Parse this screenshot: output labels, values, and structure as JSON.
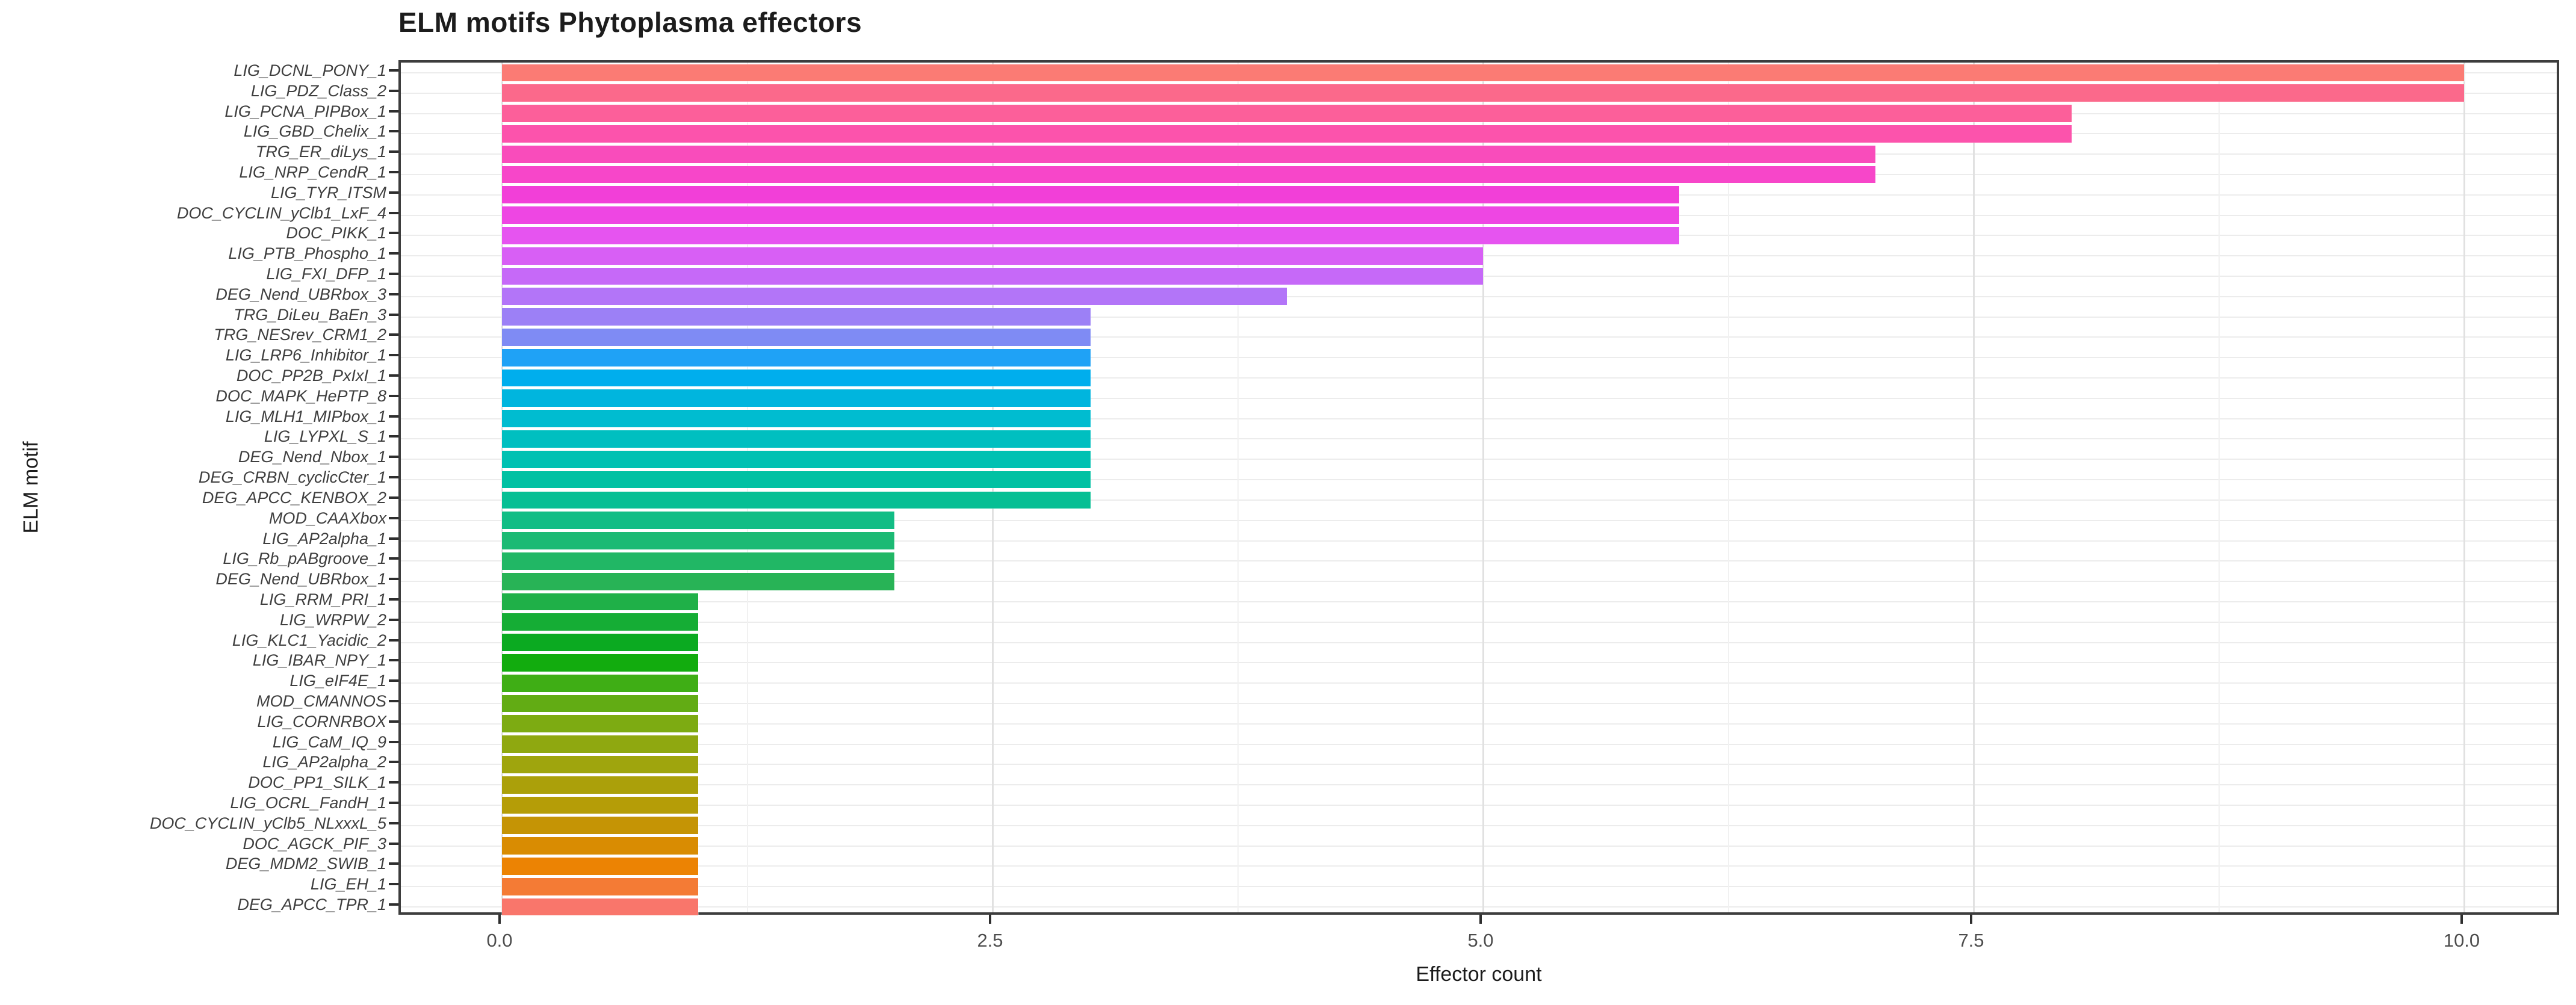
{
  "title": "ELM motifs Phytoplasma effectors",
  "x_axis_title": "Effector count",
  "y_axis_title": "ELM motif",
  "style": {
    "panel_border": "#3d3d3d",
    "grid_major": "#e1e1e1",
    "grid_minor": "#f1f1f1",
    "grid_row": "#ececec",
    "axis_tick_text": "#4d4d4d",
    "category_text": "#3f3f3f",
    "title_text": "#1c1c1c"
  },
  "chart_data": {
    "type": "bar",
    "orientation": "horizontal",
    "title": "ELM motifs Phytoplasma effectors",
    "xlabel": "Effector count",
    "ylabel": "ELM motif",
    "xlim": [
      0,
      10
    ],
    "grid": true,
    "legend": "none",
    "x_ticks": [
      {
        "label": "0.0",
        "value": 0
      },
      {
        "label": "2.5",
        "value": 2.5
      },
      {
        "label": "5.0",
        "value": 5
      },
      {
        "label": "7.5",
        "value": 7.5
      },
      {
        "label": "10.0",
        "value": 10
      }
    ],
    "x_minor_ticks": [
      1.25,
      3.75,
      6.25,
      8.75
    ],
    "categories": [
      "LIG_DCNL_PONY_1",
      "LIG_PDZ_Class_2",
      "LIG_PCNA_PIPBox_1",
      "LIG_GBD_Chelix_1",
      "TRG_ER_diLys_1",
      "LIG_NRP_CendR_1",
      "LIG_TYR_ITSM",
      "DOC_CYCLIN_yClb1_LxF_4",
      "DOC_PIKK_1",
      "LIG_PTB_Phospho_1",
      "LIG_FXI_DFP_1",
      "DEG_Nend_UBRbox_3",
      "TRG_DiLeu_BaEn_3",
      "TRG_NESrev_CRM1_2",
      "LIG_LRP6_Inhibitor_1",
      "DOC_PP2B_PxIxI_1",
      "DOC_MAPK_HePTP_8",
      "LIG_MLH1_MIPbox_1",
      "LIG_LYPXL_S_1",
      "DEG_Nend_Nbox_1",
      "DEG_CRBN_cyclicCter_1",
      "DEG_APCC_KENBOX_2",
      "MOD_CAAXbox",
      "LIG_AP2alpha_1",
      "LIG_Rb_pABgroove_1",
      "DEG_Nend_UBRbox_1",
      "LIG_RRM_PRI_1",
      "LIG_WRPW_2",
      "LIG_KLC1_Yacidic_2",
      "LIG_IBAR_NPY_1",
      "LIG_eIF4E_1",
      "MOD_CMANNOS",
      "LIG_CORNRBOX",
      "LIG_CaM_IQ_9",
      "LIG_AP2alpha_2",
      "DOC_PP1_SILK_1",
      "LIG_OCRL_FandH_1",
      "DOC_CYCLIN_yClb5_NLxxxL_5",
      "DOC_AGCK_PIF_3",
      "DEG_MDM2_SWIB_1",
      "LIG_EH_1",
      "DEG_APCC_TPR_1"
    ],
    "values": [
      10,
      10,
      8,
      8,
      7,
      7,
      6,
      6,
      6,
      5,
      5,
      4,
      3,
      3,
      3,
      3,
      3,
      3,
      3,
      3,
      3,
      3,
      2,
      2,
      2,
      2,
      1,
      1,
      1,
      1,
      1,
      1,
      1,
      1,
      1,
      1,
      1,
      1,
      1,
      1,
      1,
      1
    ],
    "bar_colors": [
      "#FB7B74",
      "#FB698B",
      "#FC5F9A",
      "#FC53AC",
      "#F94CBB",
      "#F746C9",
      "#F23FD8",
      "#EE46E3",
      "#E654F0",
      "#D85FF5",
      "#C669F8",
      "#B375F8",
      "#9C80F6",
      "#7F8BF4",
      "#1FA2F6",
      "#00AEED",
      "#00B5DE",
      "#00BCD0",
      "#00BFC0",
      "#00C1B2",
      "#01C1A3",
      "#06BF94",
      "#12BD85",
      "#1CBA74",
      "#21B765",
      "#28B356",
      "#1FB048",
      "#15AD35",
      "#0BAA21",
      "#12AC0E",
      "#3FAE15",
      "#62AC14",
      "#7DAB12",
      "#8FA810",
      "#9FA50D",
      "#ABA00A",
      "#B59D07",
      "#C59405",
      "#D98C02",
      "#EC8303",
      "#F47B35",
      "#F9766B"
    ]
  }
}
